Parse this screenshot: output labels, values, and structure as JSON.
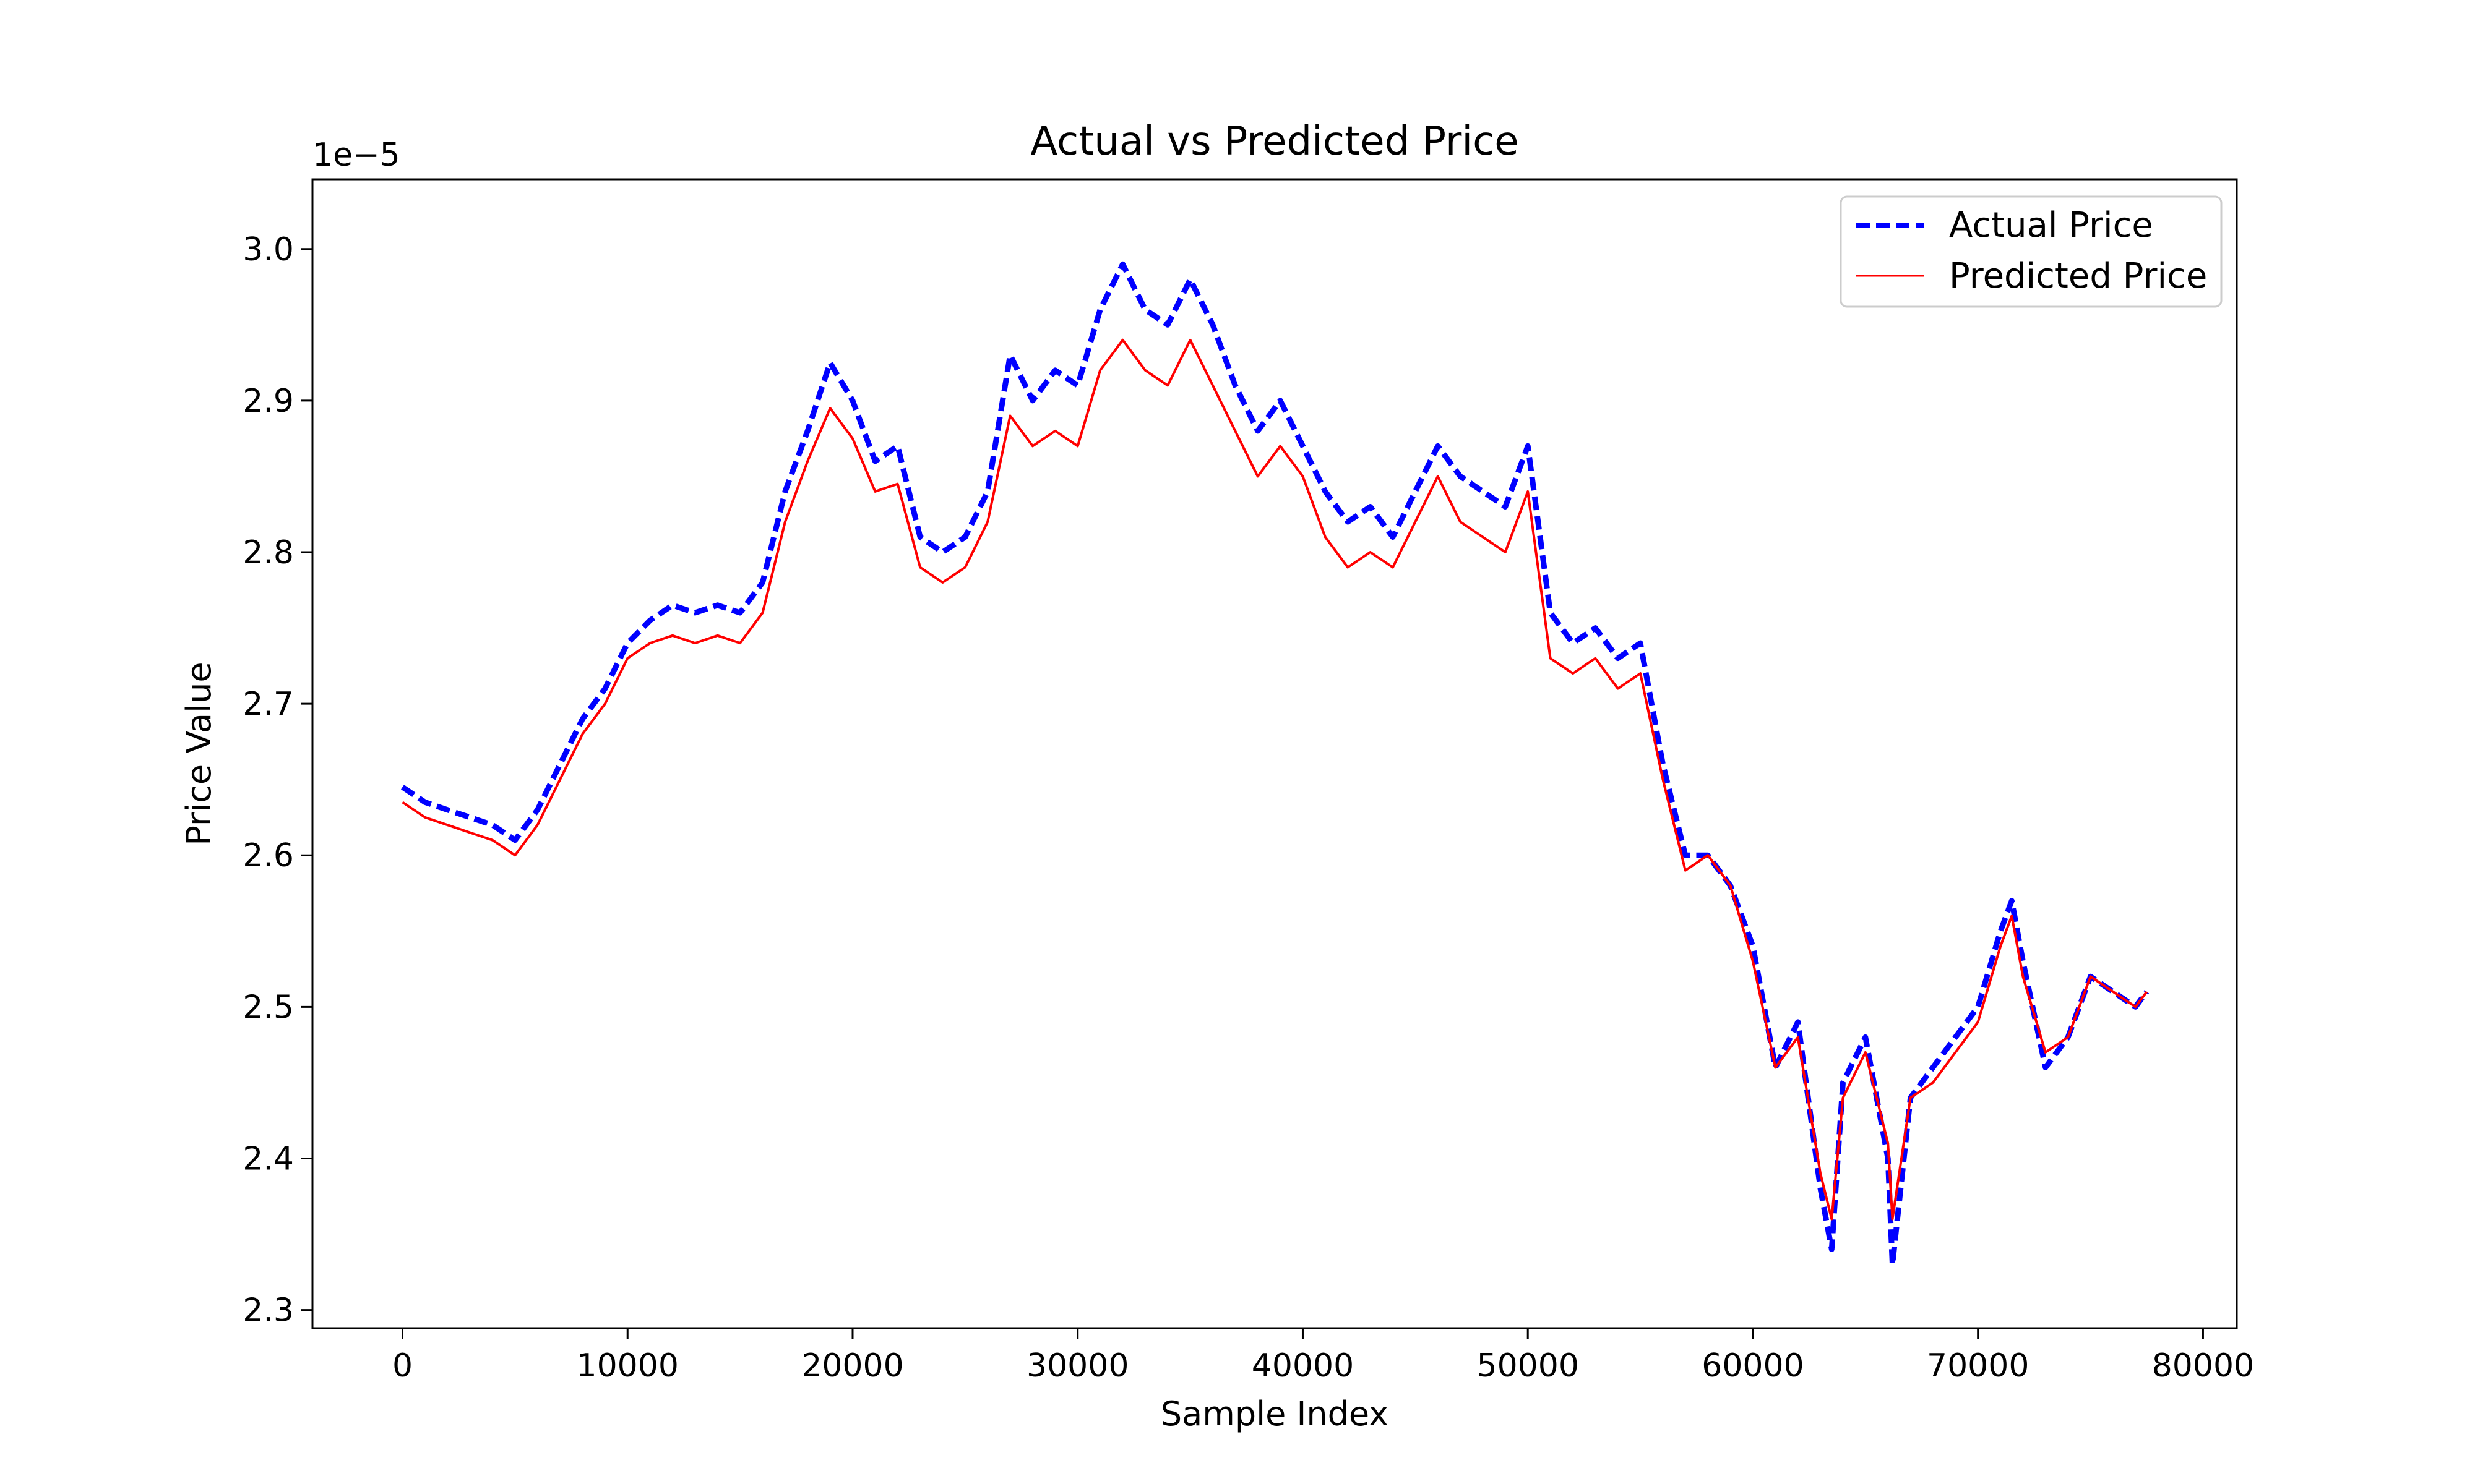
{
  "chart_data": {
    "type": "line",
    "title": "Actual vs Predicted Price",
    "xlabel": "Sample Index",
    "ylabel": "Price Value",
    "y_offset_text": "1e−5",
    "y_scale": 1e-05,
    "xlim": [
      -4000,
      81500
    ],
    "ylim": [
      2.288,
      3.046
    ],
    "xticks": [
      0,
      10000,
      20000,
      30000,
      40000,
      50000,
      60000,
      70000,
      80000
    ],
    "xtick_labels": [
      "0",
      "10000",
      "20000",
      "30000",
      "40000",
      "50000",
      "60000",
      "70000",
      "80000"
    ],
    "yticks": [
      2.3,
      2.4,
      2.5,
      2.6,
      2.7,
      2.8,
      2.9,
      3.0
    ],
    "ytick_labels": [
      "2.3",
      "2.4",
      "2.5",
      "2.6",
      "2.7",
      "2.8",
      "2.9",
      "3.0"
    ],
    "legend_position": "top-right",
    "grid": false,
    "series": [
      {
        "name": "Actual Price",
        "color": "#0000ff",
        "line_style": "dashed",
        "x": [
          0,
          1000,
          2000,
          3000,
          4000,
          5000,
          6000,
          7000,
          8000,
          9000,
          10000,
          11000,
          12000,
          13000,
          14000,
          15000,
          16000,
          17000,
          18000,
          19000,
          20000,
          21000,
          22000,
          23000,
          24000,
          25000,
          26000,
          27000,
          28000,
          29000,
          30000,
          31000,
          32000,
          33000,
          34000,
          35000,
          36000,
          37000,
          38000,
          39000,
          40000,
          41000,
          42000,
          43000,
          44000,
          45000,
          46000,
          47000,
          48000,
          49000,
          50000,
          51000,
          52000,
          53000,
          54000,
          55000,
          56000,
          57000,
          58000,
          59000,
          60000,
          61000,
          62000,
          63000,
          63500,
          64000,
          65000,
          66000,
          66200,
          67000,
          68000,
          69000,
          70000,
          71000,
          71500,
          72000,
          73000,
          74000,
          75000,
          76000,
          77000,
          77500
        ],
        "y": [
          2.645,
          2.635,
          2.63,
          2.625,
          2.62,
          2.61,
          2.63,
          2.66,
          2.69,
          2.71,
          2.74,
          2.755,
          2.765,
          2.76,
          2.765,
          2.76,
          2.78,
          2.84,
          2.88,
          2.925,
          2.9,
          2.86,
          2.87,
          2.81,
          2.8,
          2.81,
          2.84,
          2.93,
          2.9,
          2.92,
          2.91,
          2.96,
          2.99,
          2.96,
          2.95,
          2.98,
          2.95,
          2.91,
          2.88,
          2.9,
          2.87,
          2.84,
          2.82,
          2.83,
          2.81,
          2.84,
          2.87,
          2.85,
          2.84,
          2.83,
          2.87,
          2.76,
          2.74,
          2.75,
          2.73,
          2.74,
          2.66,
          2.6,
          2.6,
          2.58,
          2.54,
          2.46,
          2.49,
          2.38,
          2.34,
          2.45,
          2.48,
          2.4,
          2.33,
          2.44,
          2.46,
          2.48,
          2.5,
          2.55,
          2.57,
          2.53,
          2.46,
          2.48,
          2.52,
          2.51,
          2.5,
          2.51
        ]
      },
      {
        "name": "Predicted Price",
        "color": "#ff0000",
        "line_style": "solid",
        "x": [
          0,
          1000,
          2000,
          3000,
          4000,
          5000,
          6000,
          7000,
          8000,
          9000,
          10000,
          11000,
          12000,
          13000,
          14000,
          15000,
          16000,
          17000,
          18000,
          19000,
          20000,
          21000,
          22000,
          23000,
          24000,
          25000,
          26000,
          27000,
          28000,
          29000,
          30000,
          31000,
          32000,
          33000,
          34000,
          35000,
          36000,
          37000,
          38000,
          39000,
          40000,
          41000,
          42000,
          43000,
          44000,
          45000,
          46000,
          47000,
          48000,
          49000,
          50000,
          51000,
          52000,
          53000,
          54000,
          55000,
          56000,
          57000,
          58000,
          59000,
          60000,
          61000,
          62000,
          63000,
          63500,
          64000,
          65000,
          66000,
          66200,
          67000,
          68000,
          69000,
          70000,
          71000,
          71500,
          72000,
          73000,
          74000,
          75000,
          76000,
          77000,
          77500
        ],
        "y": [
          2.635,
          2.625,
          2.62,
          2.615,
          2.61,
          2.6,
          2.62,
          2.65,
          2.68,
          2.7,
          2.73,
          2.74,
          2.745,
          2.74,
          2.745,
          2.74,
          2.76,
          2.82,
          2.86,
          2.895,
          2.875,
          2.84,
          2.845,
          2.79,
          2.78,
          2.79,
          2.82,
          2.89,
          2.87,
          2.88,
          2.87,
          2.92,
          2.94,
          2.92,
          2.91,
          2.94,
          2.91,
          2.88,
          2.85,
          2.87,
          2.85,
          2.81,
          2.79,
          2.8,
          2.79,
          2.82,
          2.85,
          2.82,
          2.81,
          2.8,
          2.84,
          2.73,
          2.72,
          2.73,
          2.71,
          2.72,
          2.65,
          2.59,
          2.6,
          2.58,
          2.53,
          2.46,
          2.48,
          2.39,
          2.36,
          2.44,
          2.47,
          2.41,
          2.36,
          2.44,
          2.45,
          2.47,
          2.49,
          2.54,
          2.56,
          2.52,
          2.47,
          2.48,
          2.52,
          2.51,
          2.5,
          2.51
        ]
      }
    ]
  }
}
